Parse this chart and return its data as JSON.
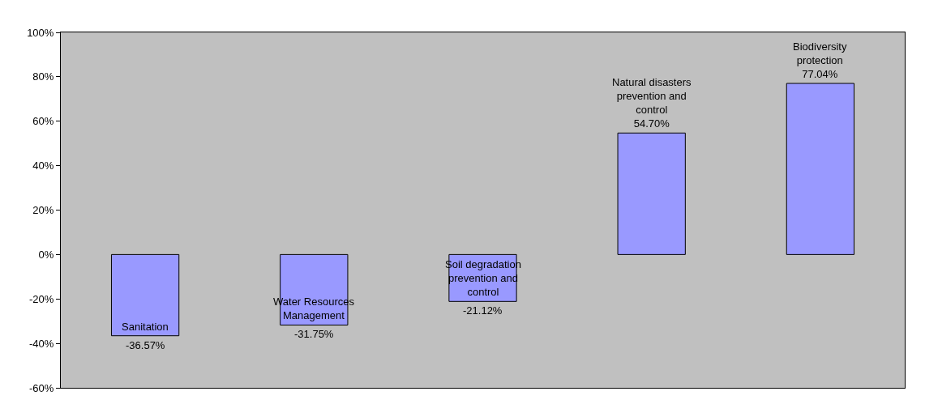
{
  "chart_data": {
    "type": "bar",
    "categories": [
      "Sanitation",
      "Water Resources Management",
      "Soil degradation prevention and control",
      "Natural disasters prevention and control",
      "Biodiversity protection"
    ],
    "values": [
      -36.57,
      -31.75,
      -21.12,
      54.7,
      77.04
    ],
    "value_labels": [
      "-36.57%",
      "-31.75%",
      "-21.12%",
      "54.70%",
      "77.04%"
    ],
    "color": "#9999ff",
    "ylim": [
      -60,
      100
    ],
    "yticks": [
      {
        "value": -60,
        "label": "-60%"
      },
      {
        "value": -40,
        "label": "-40%"
      },
      {
        "value": -20,
        "label": "-20%"
      },
      {
        "value": 0,
        "label": "0%"
      },
      {
        "value": 20,
        "label": "20%"
      },
      {
        "value": 40,
        "label": "40%"
      },
      {
        "value": 60,
        "label": "60%"
      },
      {
        "value": 80,
        "label": "80%"
      },
      {
        "value": 100,
        "label": "100%"
      }
    ],
    "tick_labels": "y",
    "grid": false,
    "legend": false
  }
}
